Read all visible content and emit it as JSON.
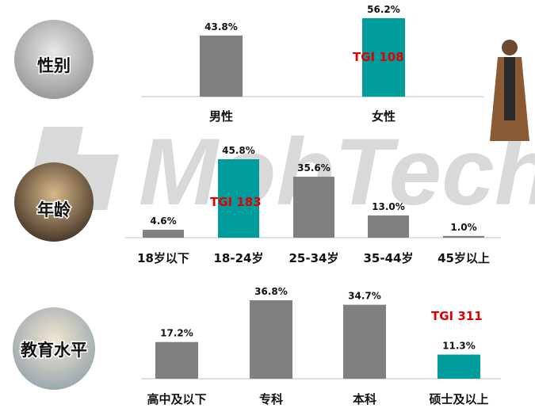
{
  "watermark": "MobTech",
  "colors": {
    "base": "#808080",
    "highlight": "#009b9b",
    "tgi": "#e00000"
  },
  "chart_data": [
    {
      "type": "bar",
      "section_label": "性别",
      "categories": [
        "男性",
        "女性"
      ],
      "values": [
        43.8,
        56.2
      ],
      "value_labels": [
        "43.8%",
        "56.2%"
      ],
      "highlight_index": 1,
      "tgi_label": "TGI  108",
      "ylim": [
        0,
        56.2
      ]
    },
    {
      "type": "bar",
      "section_label": "年龄",
      "categories": [
        "18岁以下",
        "18-24岁",
        "25-34岁",
        "35-44岁",
        "45岁以上"
      ],
      "values": [
        4.6,
        45.8,
        35.6,
        13.0,
        1.0
      ],
      "value_labels": [
        "4.6%",
        "45.8%",
        "35.6%",
        "13.0%",
        "1.0%"
      ],
      "highlight_index": 1,
      "tgi_label": "TGI  183",
      "ylim": [
        0,
        45.8
      ]
    },
    {
      "type": "bar",
      "section_label": "教育水平",
      "categories": [
        "高中及以下",
        "专科",
        "本科",
        "硕士及以上"
      ],
      "values": [
        17.2,
        36.8,
        34.7,
        11.3
      ],
      "value_labels": [
        "17.2%",
        "36.8%",
        "34.7%",
        "11.3%"
      ],
      "highlight_index": 3,
      "tgi_label": "TGI  311",
      "ylim": [
        0,
        36.8
      ]
    }
  ]
}
